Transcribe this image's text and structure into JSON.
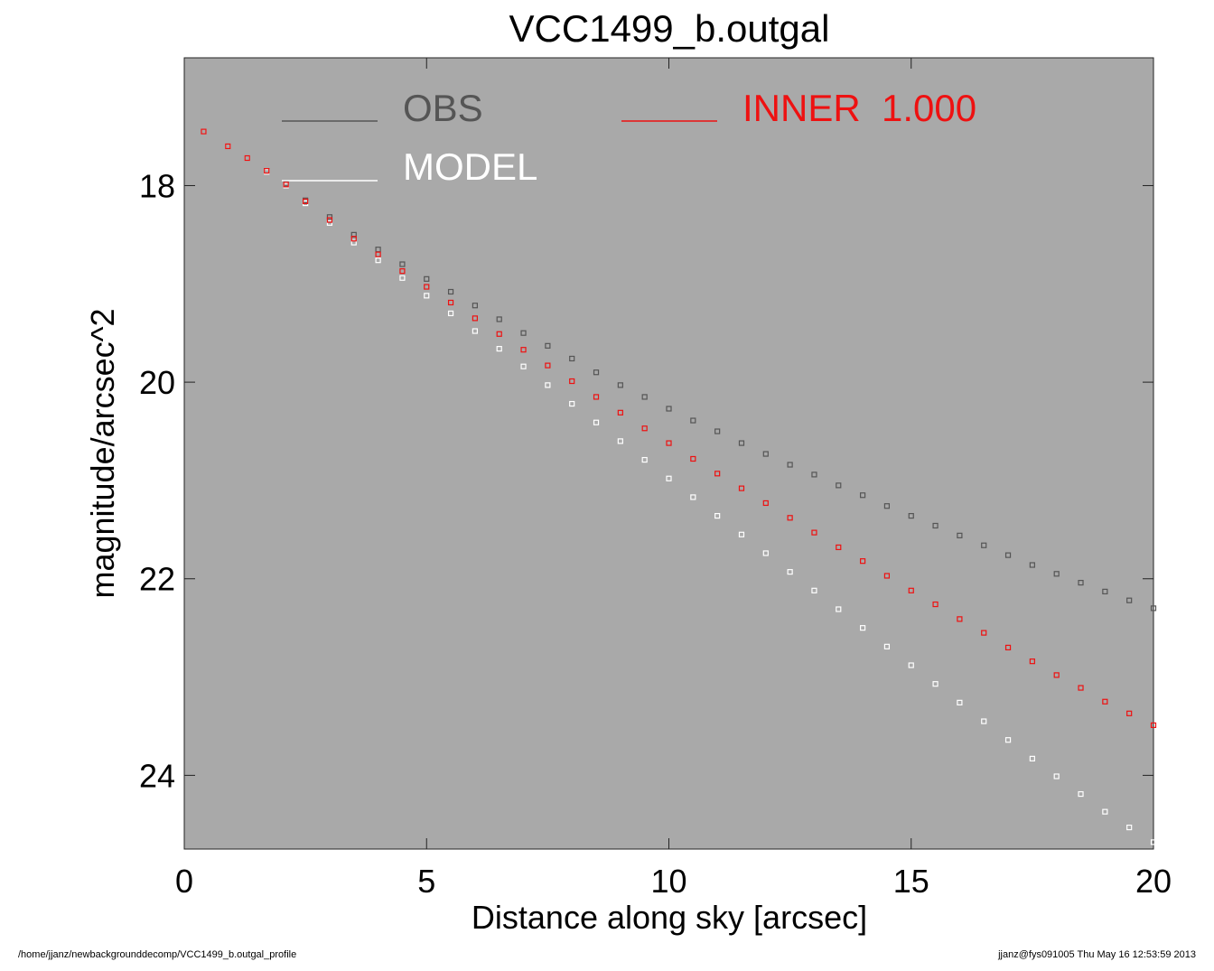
{
  "chart_data": {
    "type": "scatter",
    "title": "VCC1499_b.outgal",
    "xlabel": "Distance along sky [arcsec]",
    "ylabel": "magnitude/arcsec^2",
    "xlim": [
      0,
      20
    ],
    "ylim": [
      24.75,
      16.7
    ],
    "y_inverted": true,
    "x_ticks": [
      0,
      5,
      10,
      15,
      20
    ],
    "y_ticks": [
      18,
      20,
      22,
      24
    ],
    "x_tick_labels": [
      "0",
      "5",
      "10",
      "15",
      "20"
    ],
    "y_tick_labels": [
      "18",
      "20",
      "22",
      "24"
    ],
    "background_color": "#a9a9a9",
    "legend_placement": "top",
    "legend": [
      {
        "label": "OBS",
        "color": "#555555"
      },
      {
        "label": "INNER  1.000",
        "color": "#ee1111"
      },
      {
        "label": "MODEL",
        "color": "#ffffff"
      }
    ],
    "series": [
      {
        "name": "OBS",
        "color": "#555555",
        "x": [
          0.4,
          0.9,
          1.3,
          1.7,
          2.1,
          2.5,
          3.0,
          3.5,
          4.0,
          4.5,
          5.0,
          5.5,
          6.0,
          6.5,
          7.0,
          7.5,
          8.0,
          8.5,
          9.0,
          9.5,
          10.0,
          10.5,
          11.0,
          11.5,
          12.0,
          12.5,
          13.0,
          13.5,
          14.0,
          14.5,
          15.0,
          15.5,
          16.0,
          16.5,
          17.0,
          17.5,
          18.0,
          18.5,
          19.0,
          19.5,
          20.0
        ],
        "y": [
          17.45,
          17.6,
          17.72,
          17.85,
          17.98,
          18.15,
          18.32,
          18.5,
          18.65,
          18.8,
          18.95,
          19.08,
          19.22,
          19.36,
          19.5,
          19.63,
          19.76,
          19.9,
          20.03,
          20.15,
          20.27,
          20.39,
          20.5,
          20.62,
          20.73,
          20.84,
          20.94,
          21.05,
          21.15,
          21.26,
          21.36,
          21.46,
          21.56,
          21.66,
          21.76,
          21.86,
          21.95,
          22.04,
          22.13,
          22.22,
          22.3
        ]
      },
      {
        "name": "MODEL",
        "color": "#ffffff",
        "x": [
          0.4,
          0.9,
          1.3,
          1.7,
          2.1,
          2.5,
          3.0,
          3.5,
          4.0,
          4.5,
          5.0,
          5.5,
          6.0,
          6.5,
          7.0,
          7.5,
          8.0,
          8.5,
          9.0,
          9.5,
          10.0,
          10.5,
          11.0,
          11.5,
          12.0,
          12.5,
          13.0,
          13.5,
          14.0,
          14.5,
          15.0,
          15.5,
          16.0,
          16.5,
          17.0,
          17.5,
          18.0,
          18.5,
          19.0,
          19.5,
          20.0
        ],
        "y": [
          17.45,
          17.6,
          17.72,
          17.86,
          18.0,
          18.18,
          18.38,
          18.58,
          18.76,
          18.94,
          19.12,
          19.3,
          19.48,
          19.66,
          19.84,
          20.03,
          20.22,
          20.41,
          20.6,
          20.79,
          20.98,
          21.17,
          21.36,
          21.55,
          21.74,
          21.93,
          22.12,
          22.31,
          22.5,
          22.69,
          22.88,
          23.07,
          23.26,
          23.45,
          23.64,
          23.83,
          24.01,
          24.19,
          24.37,
          24.53,
          24.68
        ]
      },
      {
        "name": "INNER  1.000",
        "color": "#ee1111",
        "x": [
          0.4,
          0.9,
          1.3,
          1.7,
          2.1,
          2.5,
          3.0,
          3.5,
          4.0,
          4.5,
          5.0,
          5.5,
          6.0,
          6.5,
          7.0,
          7.5,
          8.0,
          8.5,
          9.0,
          9.5,
          10.0,
          10.5,
          11.0,
          11.5,
          12.0,
          12.5,
          13.0,
          13.5,
          14.0,
          14.5,
          15.0,
          15.5,
          16.0,
          16.5,
          17.0,
          17.5,
          18.0,
          18.5,
          19.0,
          19.5,
          20.0
        ],
        "y": [
          17.45,
          17.6,
          17.72,
          17.85,
          17.99,
          18.16,
          18.35,
          18.54,
          18.7,
          18.87,
          19.03,
          19.19,
          19.35,
          19.51,
          19.67,
          19.83,
          19.99,
          20.15,
          20.31,
          20.47,
          20.62,
          20.78,
          20.93,
          21.08,
          21.23,
          21.38,
          21.53,
          21.68,
          21.82,
          21.97,
          22.12,
          22.26,
          22.41,
          22.55,
          22.7,
          22.84,
          22.98,
          23.11,
          23.25,
          23.37,
          23.49
        ]
      }
    ]
  },
  "footer": {
    "left": "/home/jjanz/newbackgrounddecomp/VCC1499_b.outgal_profile",
    "right": "jjanz@fys091005  Thu May 16 12:53:59 2013"
  }
}
